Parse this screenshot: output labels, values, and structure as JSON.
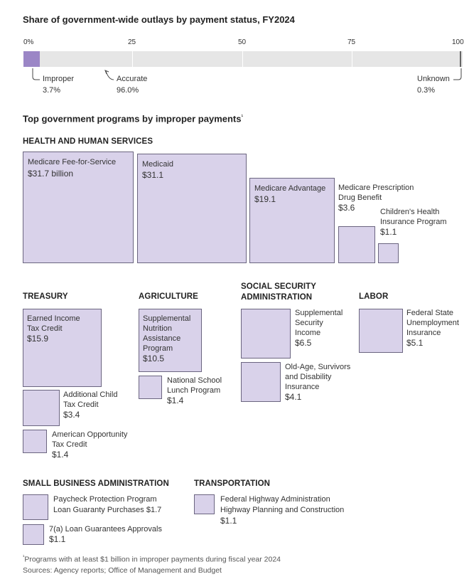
{
  "share": {
    "title": "Share of government-wide outlays by payment status, FY2024",
    "ticks": [
      "0%",
      "25",
      "50",
      "75",
      "100"
    ],
    "annotations": {
      "improper": {
        "label": "Improper",
        "value": "3.7%"
      },
      "accurate": {
        "label": "Accurate",
        "value": "96.0%"
      },
      "unknown": {
        "label": "Unknown",
        "value": "0.3%"
      }
    }
  },
  "programs": {
    "title": "Top government programs by improper payments",
    "title_mark": "¹",
    "sections": {
      "hhs": "HEALTH AND HUMAN SERVICES",
      "treasury": "TREASURY",
      "agriculture": "AGRICULTURE",
      "ssa_1": "SOCIAL SECURITY",
      "ssa_2": "ADMINISTRATION",
      "labor": "LABOR",
      "sba": "SMALL BUSINESS ADMINISTRATION",
      "transportation": "TRANSPORTATION"
    },
    "labels": {
      "ffs": {
        "name": "Medicare Fee-for-Service",
        "value": "$31.7 billion"
      },
      "medicaid": {
        "name": "Medicaid",
        "value": "$31.1"
      },
      "advantage": {
        "name": "Medicare Advantage",
        "value": "$19.1"
      },
      "rx_1": "Medicare Prescription",
      "rx_2": "Drug Benefit",
      "rx_val": "$3.6",
      "chip_1": "Children's Health",
      "chip_2": "Insurance Program",
      "chip_val": "$1.1",
      "eitc_1": "Earned Income",
      "eitc_2": "Tax Credit",
      "eitc_val": "$15.9",
      "actc_1": "Additional Child",
      "actc_2": "Tax Credit",
      "actc_val": "$3.4",
      "aotc_1": "American Opportunity",
      "aotc_2": "Tax Credit",
      "aotc_val": "$1.4",
      "snap_1": "Supplemental",
      "snap_2": "Nutrition",
      "snap_3": "Assistance",
      "snap_4": "Program",
      "snap_val": "$10.5",
      "nslp_1": "National School",
      "nslp_2": "Lunch Program",
      "nslp_val": "$1.4",
      "ssi_1": "Supplemental",
      "ssi_2": "Security",
      "ssi_3": "Income",
      "ssi_val": "$6.5",
      "oasdi_1": "Old-Age, Survivors",
      "oasdi_2": "and Disability",
      "oasdi_3": "Insurance",
      "oasdi_val": "$4.1",
      "ui_1": "Federal State",
      "ui_2": "Unemployment",
      "ui_3": "Insurance",
      "ui_val": "$5.1",
      "ppp_1": "Paycheck Protection Program",
      "ppp_2": "Loan Guaranty Purchases $1.7",
      "sevena_1": "7(a) Loan Guarantees Approvals",
      "sevena_val": "$1.1",
      "fhwa_1": "Federal Highway Administration",
      "fhwa_2": "Highway Planning and Construction",
      "fhwa_val": "$1.1"
    }
  },
  "footnote": {
    "note_mark": "¹",
    "note": "Programs with at least $1 billion in improper payments during fiscal year 2024",
    "sources": "Sources: Agency reports; Office of Management and Budget"
  },
  "colors": {
    "improper_fill": "#9b86c6",
    "box_fill": "#d9d2ea",
    "box_border": "#6b6580",
    "track": "#e6e6e6"
  },
  "chart_data": [
    {
      "type": "bar",
      "title": "Share of government-wide outlays by payment status, FY2024",
      "orientation": "horizontal-stacked",
      "xlim": [
        0,
        100
      ],
      "categories": [
        "Improper",
        "Accurate",
        "Unknown"
      ],
      "values": [
        3.7,
        96.0,
        0.3
      ],
      "unit": "%"
    },
    {
      "type": "area",
      "title": "Top government programs by improper payments",
      "unit": "$ billion",
      "series": [
        {
          "name": "HEALTH AND HUMAN SERVICES",
          "items": [
            {
              "program": "Medicare Fee-for-Service",
              "value": 31.7
            },
            {
              "program": "Medicaid",
              "value": 31.1
            },
            {
              "program": "Medicare Advantage",
              "value": 19.1
            },
            {
              "program": "Medicare Prescription Drug Benefit",
              "value": 3.6
            },
            {
              "program": "Children's Health Insurance Program",
              "value": 1.1
            }
          ]
        },
        {
          "name": "TREASURY",
          "items": [
            {
              "program": "Earned Income Tax Credit",
              "value": 15.9
            },
            {
              "program": "Additional Child Tax Credit",
              "value": 3.4
            },
            {
              "program": "American Opportunity Tax Credit",
              "value": 1.4
            }
          ]
        },
        {
          "name": "AGRICULTURE",
          "items": [
            {
              "program": "Supplemental Nutrition Assistance Program",
              "value": 10.5
            },
            {
              "program": "National School Lunch Program",
              "value": 1.4
            }
          ]
        },
        {
          "name": "SOCIAL SECURITY ADMINISTRATION",
          "items": [
            {
              "program": "Supplemental Security Income",
              "value": 6.5
            },
            {
              "program": "Old-Age, Survivors and Disability Insurance",
              "value": 4.1
            }
          ]
        },
        {
          "name": "LABOR",
          "items": [
            {
              "program": "Federal State Unemployment Insurance",
              "value": 5.1
            }
          ]
        },
        {
          "name": "SMALL BUSINESS ADMINISTRATION",
          "items": [
            {
              "program": "Paycheck Protection Program Loan Guaranty Purchases",
              "value": 1.7
            },
            {
              "program": "7(a) Loan Guarantees Approvals",
              "value": 1.1
            }
          ]
        },
        {
          "name": "TRANSPORTATION",
          "items": [
            {
              "program": "Federal Highway Administration Highway Planning and Construction",
              "value": 1.1
            }
          ]
        }
      ]
    }
  ]
}
